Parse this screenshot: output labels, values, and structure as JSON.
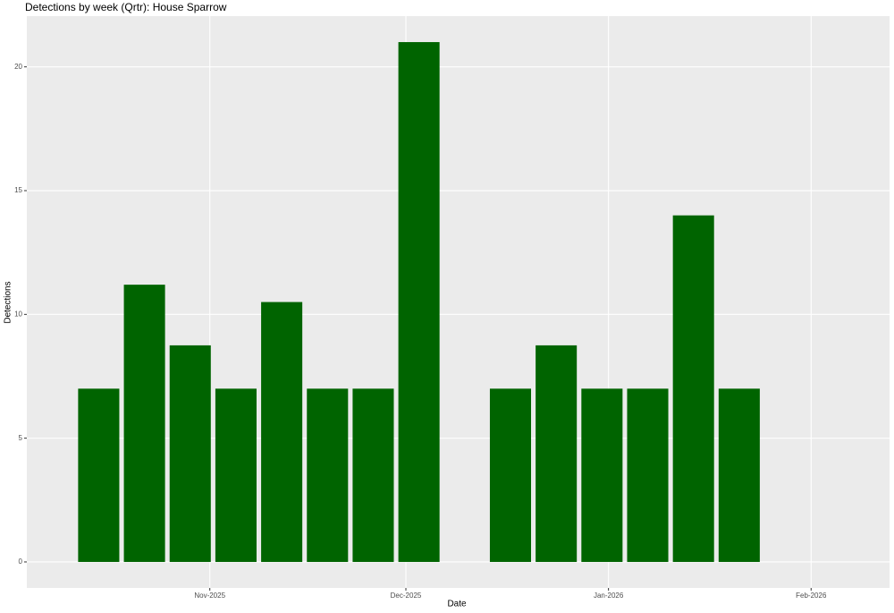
{
  "chart_data": {
    "type": "bar",
    "title": "Detections by week (Qrtr): House Sparrow",
    "x_label": "Date",
    "y_label": "Detections",
    "x": [
      "2025-10-15",
      "2025-10-22",
      "2025-10-29",
      "2025-11-05",
      "2025-11-12",
      "2025-11-19",
      "2025-11-26",
      "2025-12-03",
      "2025-12-17",
      "2025-12-24",
      "2025-12-31",
      "2026-01-07",
      "2026-01-14",
      "2026-01-21"
    ],
    "values": [
      7,
      11.2,
      8.75,
      7,
      10.5,
      7,
      7,
      21,
      7,
      8.75,
      7,
      7,
      14,
      7
    ],
    "color": "#006400",
    "xlim": [
      "2025-10-04",
      "2026-02-13"
    ],
    "xticks": [
      {
        "value": "2025-11-01",
        "label": "Nov-2025"
      },
      {
        "value": "2025-12-01",
        "label": "Dec-2025"
      },
      {
        "value": "2026-01-01",
        "label": "Jan-2026"
      },
      {
        "value": "2026-02-01",
        "label": "Feb-2026"
      }
    ],
    "ylim": [
      -1.05,
      22.05
    ],
    "yticks": [
      0,
      5,
      10,
      15,
      20
    ],
    "grid": true
  }
}
